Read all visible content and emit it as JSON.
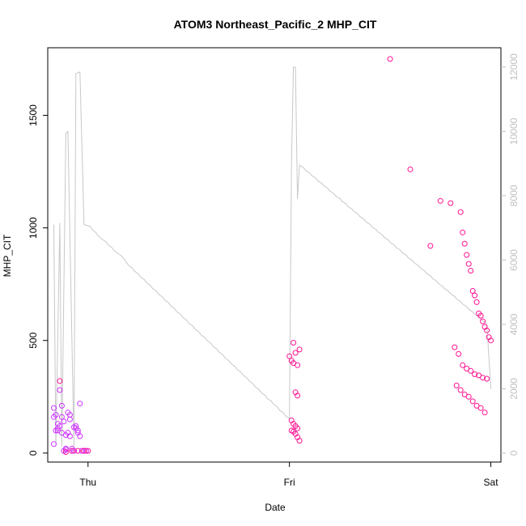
{
  "chart_data": {
    "type": "scatter",
    "title": "ATOM3 Northeast_Pacific_2 MHP_CIT",
    "xlabel": "Date",
    "ylabel": "MHP_CIT",
    "x_ticks": [
      "Thu",
      "Fri",
      "Sat"
    ],
    "xlim": [
      -0.2,
      2.05
    ],
    "ylim": [
      -40,
      1800
    ],
    "y_ticks": [
      0,
      500,
      1000,
      1500
    ],
    "y2lim": [
      -280,
      12600
    ],
    "y2_ticks": [
      0,
      2000,
      4000,
      6000,
      8000,
      10000,
      12000
    ],
    "colors": {
      "points_magenta": "#ff1493",
      "points_purple": "#cc33ff",
      "line": "#c8c8c8"
    },
    "line_series": {
      "x": [
        -0.17,
        -0.16,
        -0.14,
        -0.13,
        -0.11,
        -0.1,
        -0.07,
        -0.06,
        -0.04,
        -0.02,
        0.01,
        0.02,
        0.04,
        0.05,
        0.07,
        0.09,
        0.1,
        0.12,
        0.13,
        0.15,
        0.17,
        0.18,
        0.19,
        0.2,
        0.22,
        0.23,
        0.25,
        0.26,
        0.28,
        0.29,
        0.31,
        0.32,
        0.34,
        0.35,
        0.37,
        0.38,
        0.4,
        0.41,
        0.43,
        0.44,
        0.46,
        0.47,
        0.49,
        0.5,
        0.52,
        0.53,
        0.55,
        0.56,
        0.58,
        0.59,
        0.61,
        0.62,
        0.64,
        0.65,
        0.67,
        0.68,
        0.7,
        0.71,
        0.73,
        0.74,
        0.76,
        0.77,
        0.79,
        0.8,
        0.82,
        0.83,
        0.85,
        0.86,
        0.88,
        0.89,
        0.91,
        0.92,
        0.94,
        0.95,
        0.97,
        0.98,
        1.0,
        1.01,
        1.02,
        1.03,
        1.04,
        1.05,
        1.07,
        1.08,
        1.1,
        1.11,
        1.13,
        1.14,
        1.16,
        1.17,
        1.19,
        1.2,
        1.22,
        1.23,
        1.25,
        1.26,
        1.28,
        1.29,
        1.31,
        1.32,
        1.34,
        1.35,
        1.37,
        1.38,
        1.4,
        1.41,
        1.43,
        1.44,
        1.46,
        1.47,
        1.49,
        1.5,
        1.52,
        1.53,
        1.55,
        1.56,
        1.58,
        1.59,
        1.61,
        1.62,
        1.64,
        1.65,
        1.67,
        1.68,
        1.7,
        1.71,
        1.73,
        1.74,
        1.76,
        1.77,
        1.79,
        1.8,
        1.82,
        1.83,
        1.85,
        1.86,
        1.88,
        1.89,
        1.91,
        1.92,
        1.94,
        1.95,
        1.97,
        1.98,
        2.0
      ],
      "y": [
        7100,
        200,
        7150,
        200,
        9950,
        10000,
        200,
        11800,
        11850,
        7100,
        7050,
        6950,
        6850,
        6750,
        6650,
        6560,
        6470,
        6380,
        6290,
        6200,
        6110,
        6020,
        5930,
        5840,
        5750,
        5660,
        5570,
        5480,
        5390,
        5300,
        5210,
        5120,
        5030,
        4940,
        4850,
        4760,
        4670,
        4580,
        4490,
        4400,
        4310,
        4220,
        4130,
        4040,
        3950,
        3860,
        3770,
        3680,
        3590,
        3500,
        3410,
        3320,
        3230,
        3140,
        3050,
        2960,
        2870,
        2780,
        2690,
        2600,
        2510,
        2420,
        2330,
        2240,
        2150,
        2060,
        1970,
        1880,
        1790,
        1700,
        1610,
        1520,
        1430,
        1340,
        1250,
        1160,
        1070,
        9000,
        12000,
        12000,
        7900,
        8950,
        8870,
        8790,
        8710,
        8630,
        8550,
        8470,
        8390,
        8310,
        8230,
        8150,
        8070,
        7990,
        7910,
        7830,
        7750,
        7670,
        7590,
        7510,
        7430,
        7350,
        7270,
        7190,
        7110,
        7030,
        6950,
        6870,
        6790,
        6710,
        6630,
        6550,
        6470,
        6390,
        6310,
        6230,
        6150,
        6070,
        5990,
        5910,
        5830,
        5750,
        5670,
        5590,
        5510,
        5430,
        5350,
        5270,
        5190,
        5110,
        5030,
        4950,
        4870,
        4790,
        4710,
        4630,
        4550,
        4470,
        4390,
        4310,
        4230,
        4150,
        4070,
        3990,
        2000
      ]
    },
    "series": [
      {
        "color": "#cc33ff",
        "x": [
          -0.17,
          -0.17,
          -0.16,
          -0.16,
          -0.15,
          -0.15,
          -0.14,
          -0.14,
          -0.13,
          -0.13,
          -0.12,
          -0.12,
          -0.11,
          -0.11,
          -0.1,
          -0.1,
          -0.09,
          -0.09,
          -0.08,
          -0.08,
          -0.07,
          -0.07,
          -0.06,
          -0.06,
          -0.05,
          -0.05,
          -0.04,
          -0.04,
          -0.03,
          -0.03,
          -0.02,
          -0.02,
          -0.01,
          -0.01,
          -0.17,
          -0.15,
          -0.13,
          -0.11,
          -0.09,
          -0.07
        ],
        "y": [
          200,
          160,
          170,
          100,
          130,
          110,
          280,
          120,
          160,
          90,
          140,
          10,
          80,
          20,
          90,
          180,
          170,
          150,
          10,
          20,
          10,
          115,
          110,
          120,
          90,
          100,
          220,
          75,
          10,
          10,
          10,
          10,
          10,
          10,
          40,
          100,
          210,
          15,
          75,
          10
        ]
      },
      {
        "color": "#ff1493",
        "x": [
          -0.14,
          -0.11,
          -0.08,
          -0.05,
          -0.02,
          0.0,
          1.0,
          1.01,
          1.02,
          1.03,
          1.04,
          1.05,
          1.01,
          1.02,
          1.03,
          1.04,
          1.01,
          1.02,
          1.03,
          1.04,
          1.05,
          1.02,
          1.03,
          1.04,
          1.5,
          1.6,
          1.7,
          1.75,
          1.8,
          1.85,
          1.86,
          1.87,
          1.88,
          1.89,
          1.9,
          1.91,
          1.92,
          1.93,
          1.94,
          1.95,
          1.96,
          1.97,
          1.98,
          1.99,
          2.0,
          1.82,
          1.84,
          1.86,
          1.88,
          1.9,
          1.92,
          1.94,
          1.96,
          1.98,
          1.83,
          1.85,
          1.87,
          1.89,
          1.91,
          1.93,
          1.95,
          1.97
        ],
        "y": [
          320,
          5,
          10,
          10,
          10,
          10,
          430,
          410,
          400,
          270,
          255,
          460,
          145,
          130,
          120,
          110,
          100,
          95,
          85,
          70,
          55,
          490,
          445,
          390,
          1750,
          1260,
          920,
          1120,
          1110,
          1070,
          980,
          930,
          880,
          840,
          810,
          720,
          700,
          670,
          620,
          610,
          585,
          560,
          545,
          515,
          500,
          470,
          440,
          390,
          375,
          365,
          350,
          345,
          335,
          330,
          300,
          280,
          260,
          250,
          230,
          210,
          200,
          180
        ]
      }
    ]
  }
}
